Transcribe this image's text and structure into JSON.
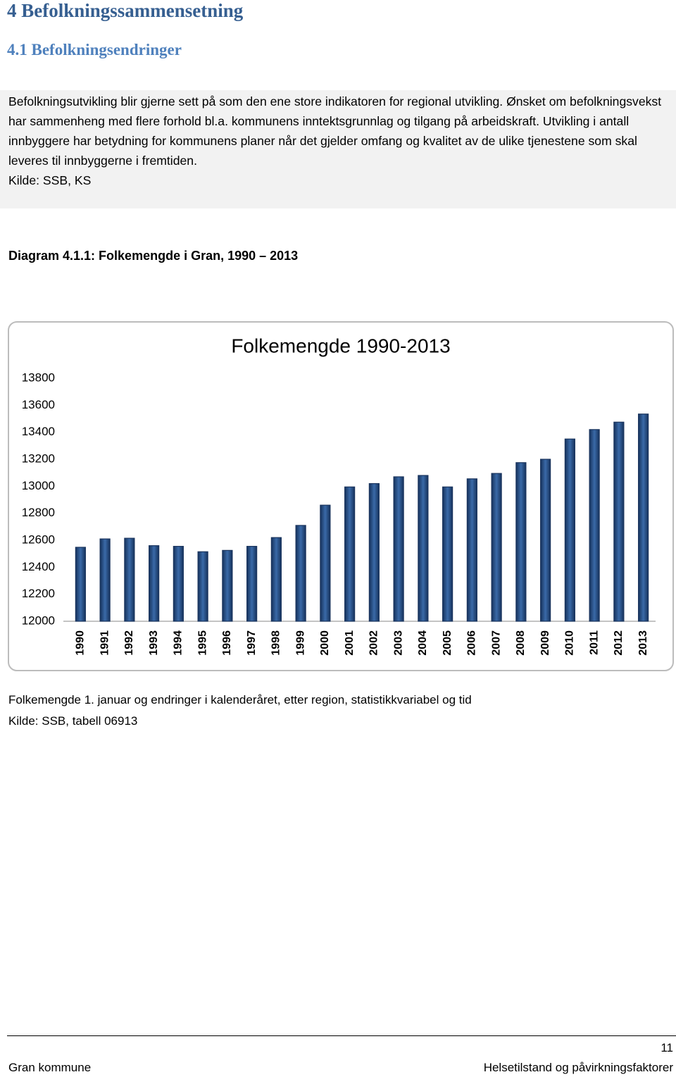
{
  "header": {
    "title": "4 Befolkningssammensetning",
    "subtitle": "4.1 Befolkningsendringer"
  },
  "intro": {
    "paragraph": "Befolkningsutvikling blir gjerne sett på som den ene store indikatoren for regional utvikling. Ønsket om befolkningsvekst har sammenheng med flere forhold bl.a. kommunens inntektsgrunnlag og tilgang på arbeidskraft. Utvikling i antall innbyggere har betydning for kommunens planer når det gjelder omfang og kvalitet av de ulike tjenestene som skal leveres til innbyggerne i fremtiden.",
    "source": "Kilde: SSB, KS"
  },
  "caption": "Diagram 4.1.1: Folkemengde i Gran, 1990 – 2013",
  "chart_data": {
    "type": "bar",
    "title": "Folkemengde 1990-2013",
    "categories": [
      "1990",
      "1991",
      "1992",
      "1993",
      "1994",
      "1995",
      "1996",
      "1997",
      "1998",
      "1999",
      "2000",
      "2001",
      "2002",
      "2003",
      "2004",
      "2005",
      "2006",
      "2007",
      "2008",
      "2009",
      "2010",
      "2011",
      "2012",
      "2013"
    ],
    "values": [
      12548,
      12610,
      12615,
      12560,
      12555,
      12515,
      12525,
      12555,
      12620,
      12710,
      12860,
      12995,
      13020,
      13070,
      13080,
      12995,
      13055,
      13095,
      13175,
      13200,
      13350,
      13420,
      13475,
      13535
    ],
    "color": "#3a6aa8",
    "ylim": [
      12000,
      13800
    ],
    "yticks": [
      12000,
      12200,
      12400,
      12600,
      12800,
      13000,
      13200,
      13400,
      13600,
      13800
    ],
    "grid": false
  },
  "notes": [
    "Folkemengde 1. januar og endringer i kalenderåret, etter region, statistikkvariabel og tid",
    "Kilde: SSB, tabell 06913"
  ],
  "footer": {
    "page": "11",
    "left": "Gran kommune",
    "right": "Helsetilstand og påvirkningsfaktorer"
  }
}
